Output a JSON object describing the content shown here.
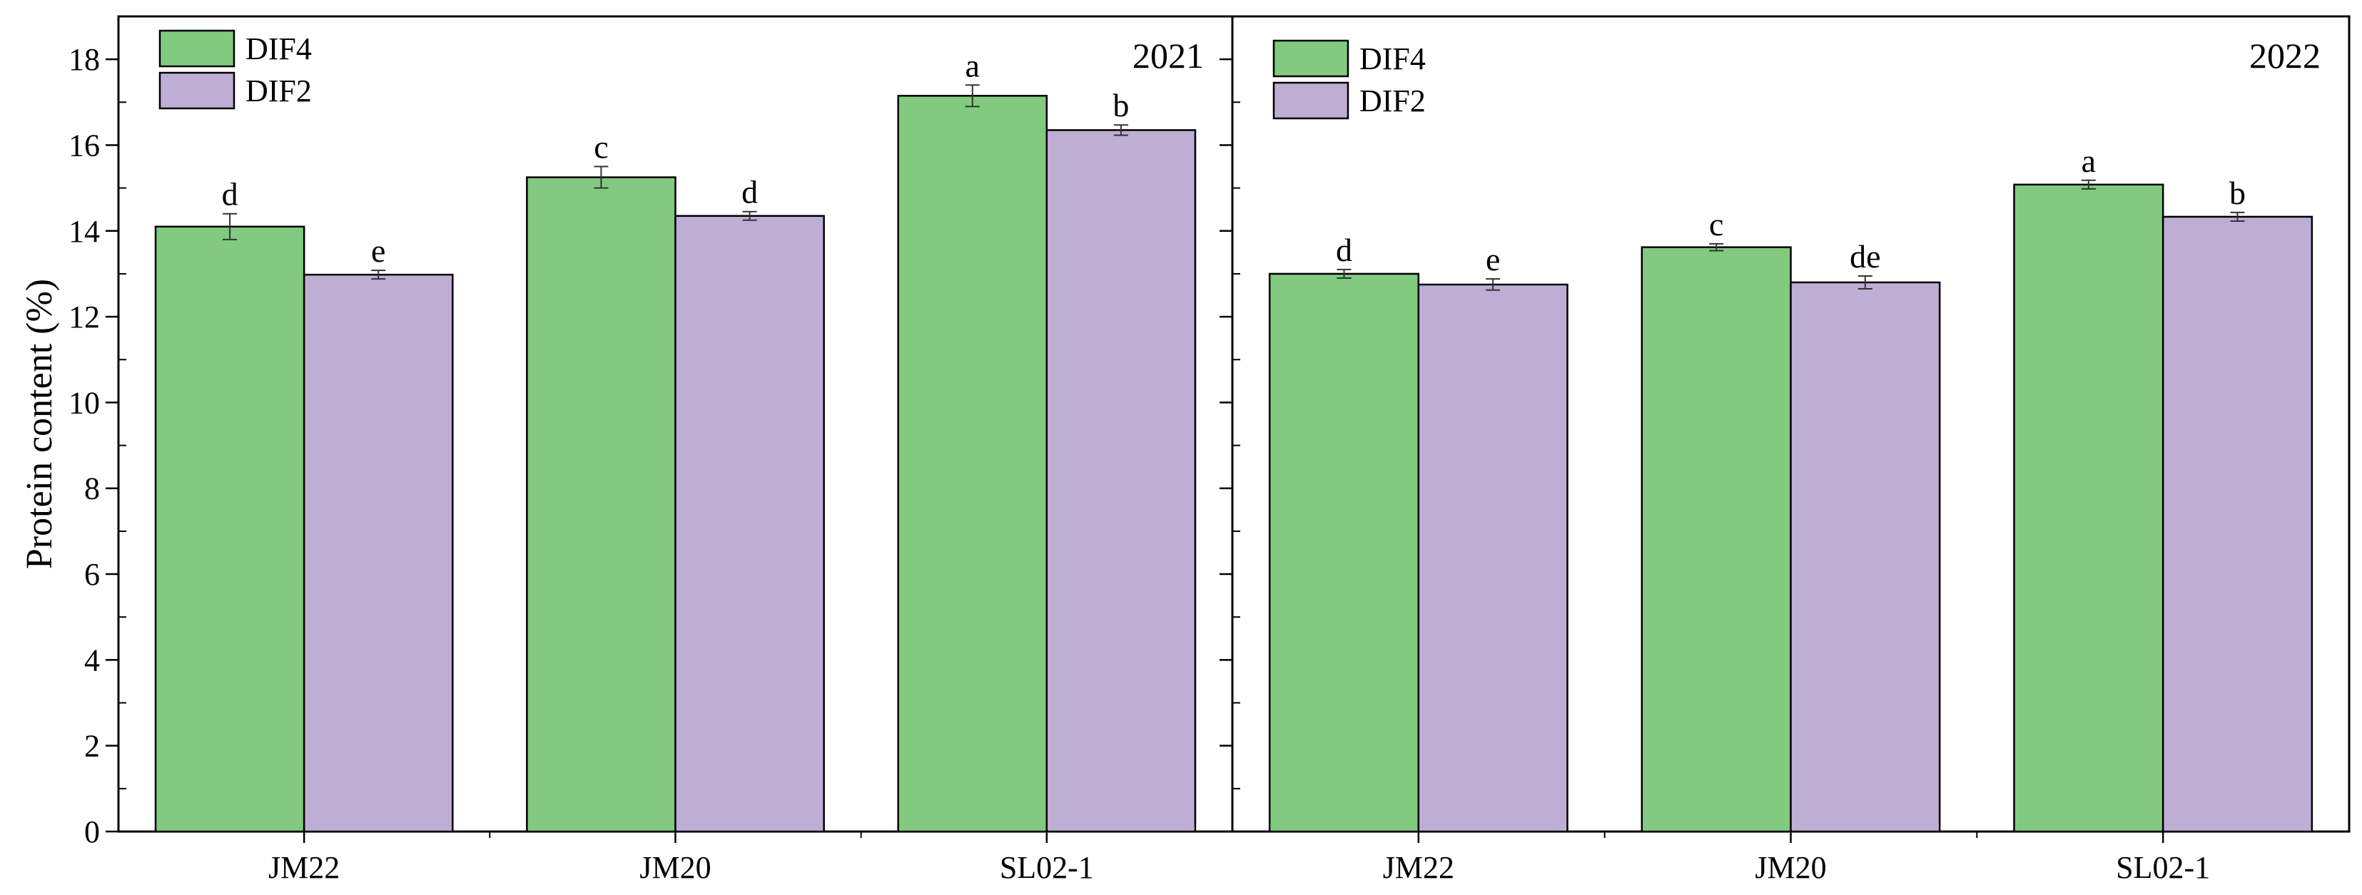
{
  "chart_data": [
    {
      "type": "bar",
      "panel_label": "2021",
      "ylabel": "Protein content (%)",
      "ylim": [
        0,
        19
      ],
      "yticks": [
        "0",
        "2",
        "4",
        "6",
        "8",
        "10",
        "12",
        "14",
        "16",
        "18"
      ],
      "categories": [
        "JM22",
        "JM20",
        "SL02-1"
      ],
      "legend_position": "top-left",
      "series": [
        {
          "name": "DIF4",
          "color": "#81CA7F",
          "values": [
            14.1,
            15.25,
            17.15
          ],
          "errors": [
            0.3,
            0.25,
            0.25
          ],
          "letters": [
            "d",
            "c",
            "a"
          ]
        },
        {
          "name": "DIF2",
          "color": "#BEADD4",
          "values": [
            12.98,
            14.35,
            16.35
          ],
          "errors": [
            0.1,
            0.1,
            0.12
          ],
          "letters": [
            "e",
            "d",
            "b"
          ]
        }
      ]
    },
    {
      "type": "bar",
      "panel_label": "2022",
      "ylabel": "",
      "ylim": [
        0,
        19
      ],
      "categories": [
        "JM22",
        "JM20",
        "SL02-1"
      ],
      "legend_position": "top-left",
      "series": [
        {
          "name": "DIF4",
          "color": "#81CA7F",
          "values": [
            13.0,
            13.62,
            15.08
          ],
          "errors": [
            0.1,
            0.08,
            0.1
          ],
          "letters": [
            "d",
            "c",
            "a"
          ]
        },
        {
          "name": "DIF2",
          "color": "#BEADD4",
          "values": [
            12.75,
            12.8,
            14.33
          ],
          "errors": [
            0.13,
            0.15,
            0.1
          ],
          "letters": [
            "e",
            "de",
            "b"
          ]
        }
      ]
    }
  ]
}
